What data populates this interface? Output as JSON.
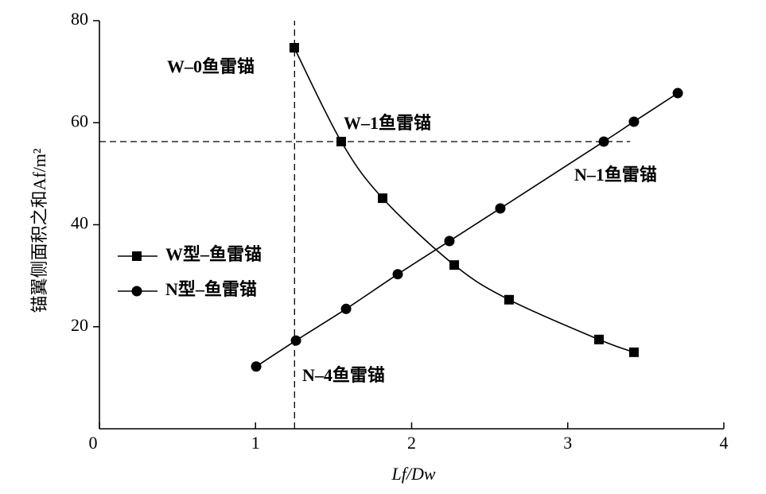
{
  "chart_data": {
    "type": "line",
    "x_label": "Lf/Dw",
    "y_label": "锚翼侧面积之和Af/m²",
    "xlim": [
      0,
      4
    ],
    "xticks": [
      0,
      1,
      2,
      3,
      4
    ],
    "ylim": [
      0,
      80
    ],
    "yticks": [
      20,
      40,
      60,
      80
    ],
    "legend": "left",
    "series": [
      {
        "name": "W型–鱼雷锚",
        "color": "#000000",
        "marker": "square",
        "x": [
          1.248,
          1.549,
          1.814,
          2.273,
          2.624,
          3.2,
          3.424
        ],
        "values": [
          74.7,
          56.3,
          45.2,
          32.1,
          25.3,
          17.5,
          15.0
        ]
      },
      {
        "name": "N型–鱼雷锚",
        "color": "#000000",
        "marker": "circle",
        "x": [
          1.004,
          1.259,
          1.58,
          1.911,
          2.242,
          2.568,
          3.231,
          3.424,
          3.705
        ],
        "values": [
          12.2,
          17.3,
          23.5,
          30.3,
          36.8,
          43.2,
          56.3,
          60.2,
          65.8
        ]
      }
    ],
    "reference_lines": {
      "x": 1.25,
      "y": 56.3,
      "y_line_x_end": 3.4
    },
    "annotations": [
      "W–0鱼雷锚",
      "W–1鱼雷锚",
      "N–1鱼雷锚",
      "N–4鱼雷锚"
    ]
  }
}
